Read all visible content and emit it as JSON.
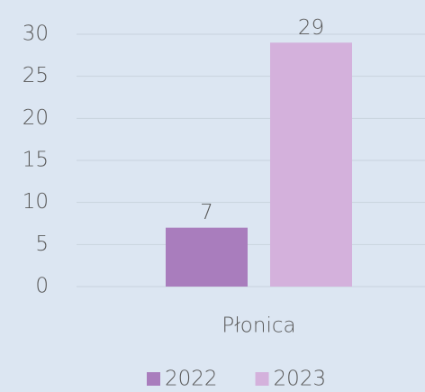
{
  "chart_data": {
    "type": "bar",
    "categories": [
      "Płonica"
    ],
    "series": [
      {
        "name": "2022",
        "color": "#a97dbd",
        "values": [
          7
        ]
      },
      {
        "name": "2023",
        "color": "#d4b1dc",
        "values": [
          29
        ]
      }
    ],
    "ylim": [
      0,
      30
    ],
    "yticks": [
      0,
      5,
      10,
      15,
      20,
      25,
      30
    ],
    "grid": true,
    "legend": "bottom"
  }
}
